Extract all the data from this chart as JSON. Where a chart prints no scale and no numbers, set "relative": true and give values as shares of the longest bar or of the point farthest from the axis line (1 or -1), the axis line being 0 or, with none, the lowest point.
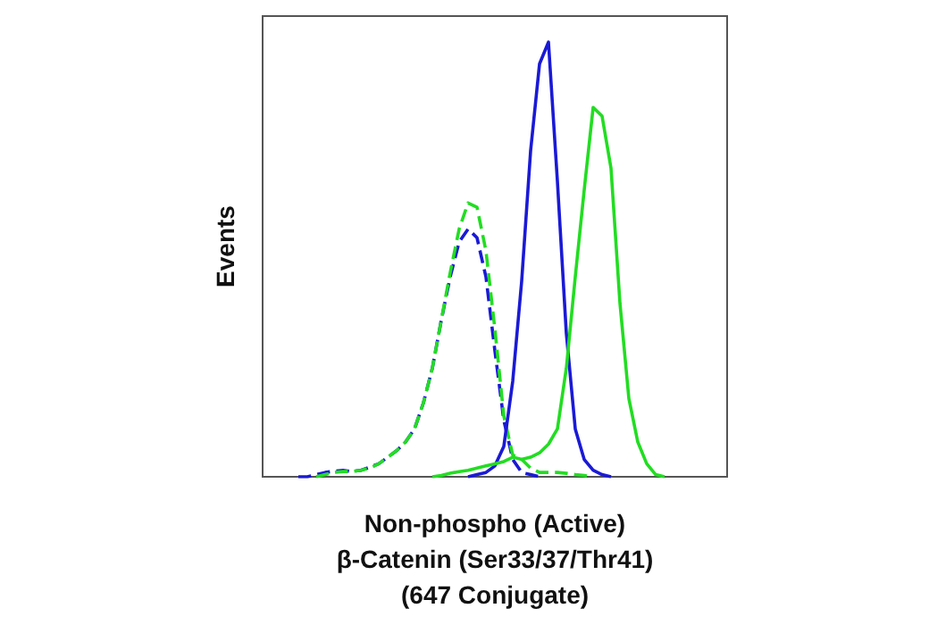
{
  "chart_data": {
    "type": "line",
    "relative": true,
    "xlabel": "Non-phospho (Active)\nβ-Catenin (Ser33/37/Thr41)\n(647 Conjugate)",
    "ylabel": "Events",
    "marker": "none",
    "grid": false,
    "categories": [
      null,
      null,
      null,
      null,
      null,
      null,
      null,
      null,
      null,
      null,
      null,
      null,
      null,
      null,
      null,
      null,
      null,
      null,
      null,
      null,
      null,
      null,
      null,
      null,
      null,
      null,
      null,
      null,
      null,
      null,
      null,
      null,
      null,
      null,
      null,
      null,
      null,
      null,
      null,
      null,
      null,
      null,
      null,
      null,
      null,
      null,
      null,
      null,
      null,
      null,
      null,
      null,
      null
    ],
    "series": [
      {
        "color": "#1a1ad6",
        "line_style": "dashed",
        "values": [
          null,
          null,
          null,
          null,
          0,
          0,
          0.005,
          0.01,
          0.013,
          0.015,
          0.012,
          0.015,
          0.022,
          0.03,
          0.045,
          0.06,
          0.08,
          0.11,
          0.17,
          0.25,
          0.36,
          0.46,
          0.54,
          0.57,
          0.55,
          0.46,
          0.29,
          0.13,
          0.04,
          0.01,
          0.005,
          0,
          null,
          null,
          null,
          null,
          null,
          null,
          null,
          null,
          null,
          null,
          null,
          null,
          null,
          null,
          null,
          null,
          null,
          null,
          null,
          null,
          null
        ]
      },
      {
        "color": "#22dd22",
        "line_style": "dashed",
        "values": [
          null,
          null,
          null,
          null,
          null,
          null,
          0,
          0.005,
          0.01,
          0.012,
          0.012,
          0.015,
          0.02,
          0.03,
          0.045,
          0.06,
          0.08,
          0.11,
          0.17,
          0.25,
          0.36,
          0.47,
          0.57,
          0.63,
          0.62,
          0.52,
          0.34,
          0.14,
          0.05,
          0.04,
          0.02,
          0.01,
          0.01,
          0.01,
          0.008,
          0.005,
          0.003,
          0,
          null,
          null,
          null,
          null,
          null,
          null,
          null,
          null,
          null,
          null,
          null,
          null,
          null,
          null,
          null
        ]
      },
      {
        "color": "#1a1ad6",
        "line_style": "solid",
        "values": [
          null,
          null,
          null,
          null,
          null,
          null,
          null,
          null,
          null,
          null,
          null,
          null,
          null,
          null,
          null,
          null,
          null,
          null,
          null,
          null,
          null,
          null,
          null,
          0,
          0.005,
          0.01,
          0.025,
          0.07,
          0.22,
          0.45,
          0.75,
          0.95,
          1,
          0.68,
          0.33,
          0.11,
          0.04,
          0.015,
          0.005,
          0,
          null,
          null,
          null,
          null,
          null,
          null,
          null,
          null,
          null,
          null,
          null,
          null,
          null
        ]
      },
      {
        "color": "#22dd22",
        "line_style": "solid",
        "values": [
          null,
          null,
          null,
          null,
          null,
          null,
          null,
          null,
          null,
          null,
          null,
          null,
          null,
          null,
          null,
          null,
          null,
          null,
          null,
          0,
          0.003,
          0.008,
          0.012,
          0.015,
          0.02,
          0.025,
          0.03,
          0.035,
          0.045,
          0.04,
          0.045,
          0.055,
          0.075,
          0.11,
          0.25,
          0.46,
          0.66,
          0.85,
          0.83,
          0.71,
          0.4,
          0.18,
          0.08,
          0.03,
          0.005,
          0,
          null,
          null,
          null,
          null,
          null,
          null,
          null
        ]
      }
    ]
  }
}
